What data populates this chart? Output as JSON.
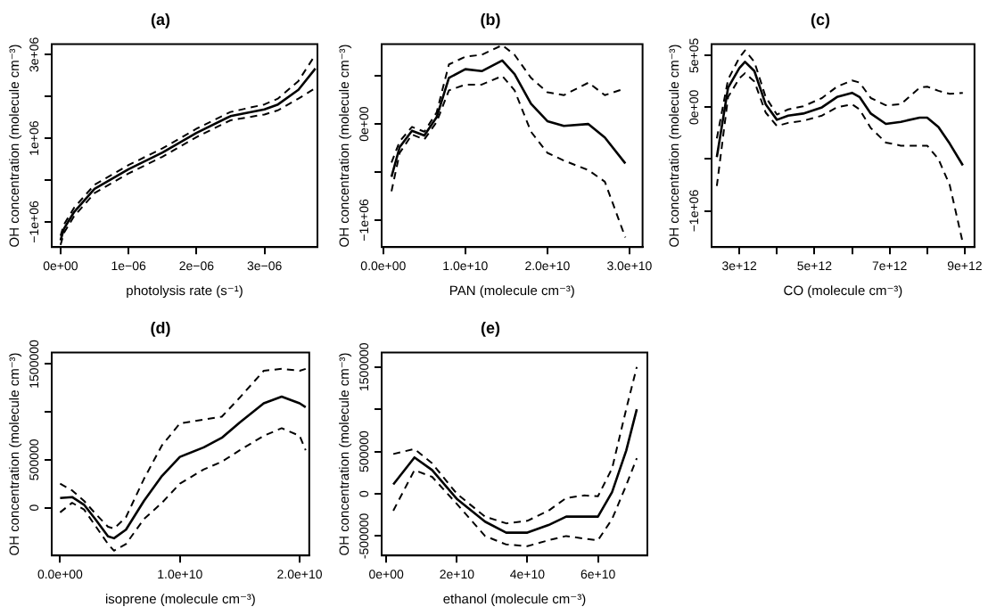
{
  "chart_data": [
    {
      "type": "line",
      "title": "(a)",
      "xlabel": "photolysis rate (s⁻¹)",
      "ylabel": "OH concentration (molecule cm⁻³)",
      "xlim": [
        -1.3e-07,
        3.78e-06
      ],
      "ylim": [
        -1600000.0,
        3250000.0
      ],
      "xticks": [
        {
          "value": 0,
          "label": "0e+00"
        },
        {
          "value": 1e-06,
          "label": "1e−06"
        },
        {
          "value": 2e-06,
          "label": "2e−06"
        },
        {
          "value": 3e-06,
          "label": "3e−06"
        }
      ],
      "yticks": [
        {
          "value": -1000000.0,
          "label": "−1e+06"
        },
        {
          "value": 0,
          "label": null
        },
        {
          "value": 1000000.0,
          "label": "1e+06"
        },
        {
          "value": 2000000.0,
          "label": null
        },
        {
          "value": 3000000.0,
          "label": "3e+06"
        }
      ],
      "grid": false,
      "legend": false,
      "marker": "none",
      "x": [
        0,
        5e-08,
        2e-07,
        5e-07,
        1e-06,
        1.5e-06,
        2e-06,
        2.5e-06,
        3e-06,
        3.2e-06,
        3.5e-06,
        3.75e-06
      ],
      "series": [
        {
          "color": "#000000",
          "line_style": "solid",
          "values": [
            -1440000.0,
            -1160000.0,
            -760000.0,
            -210000.0,
            260000.0,
            660000.0,
            1130000.0,
            1530000.0,
            1690000.0,
            1810000.0,
            2160000.0,
            2670000.0
          ]
        },
        {
          "color": "#000000",
          "line_style": "dashed",
          "values": [
            -1330000.0,
            -1060000.0,
            -660000.0,
            -110000.0,
            360000.0,
            760000.0,
            1230000.0,
            1630000.0,
            1810000.0,
            1950000.0,
            2370000.0,
            3000000.0
          ]
        },
        {
          "color": "#000000",
          "line_style": "dashed",
          "values": [
            -1550000.0,
            -1260000.0,
            -860000.0,
            -310000.0,
            160000.0,
            560000.0,
            1030000.0,
            1430000.0,
            1570000.0,
            1670000.0,
            1950000.0,
            2200000.0
          ]
        }
      ]
    },
    {
      "type": "line",
      "title": "(b)",
      "xlabel": "PAN (molecule cm⁻³)",
      "ylabel": "OH concentration (molecule cm⁻³)",
      "xlim": [
        -200000000.0,
        31600000000.0
      ],
      "ylim": [
        -1280000.0,
        830000.0
      ],
      "xticks": [
        {
          "value": 0,
          "label": "0.0e+00"
        },
        {
          "value": 10000000000.0,
          "label": "1.0e+10"
        },
        {
          "value": 20000000000.0,
          "label": "2.0e+10"
        },
        {
          "value": 30000000000.0,
          "label": "3.0e+10"
        }
      ],
      "yticks": [
        {
          "value": -1000000.0,
          "label": "−1e+06"
        },
        {
          "value": -500000.0,
          "label": null
        },
        {
          "value": 0,
          "label": "0e+00"
        },
        {
          "value": 500000.0,
          "label": null
        }
      ],
      "grid": false,
      "legend": false,
      "marker": "none",
      "x": [
        1000000000.0,
        2000000000.0,
        3500000000.0,
        5000000000.0,
        6500000000.0,
        8000000000.0,
        10000000000.0,
        12000000000.0,
        14500000000.0,
        16000000000.0,
        18000000000.0,
        20000000000.0,
        22000000000.0,
        25000000000.0,
        27000000000.0,
        29500000000.0
      ],
      "series": [
        {
          "color": "#000000",
          "line_style": "solid",
          "values": [
            -550000.0,
            -240000.0,
            -70000.0,
            -120000.0,
            70000.0,
            480000.0,
            570000.0,
            550000.0,
            660000.0,
            520000.0,
            210000.0,
            30000.0,
            -20000.0,
            0,
            -140000.0,
            -410000.0
          ]
        },
        {
          "color": "#000000",
          "line_style": "dashed",
          "values": [
            -400000.0,
            -180000.0,
            -30000.0,
            -80000.0,
            120000.0,
            620000.0,
            700000.0,
            720000.0,
            820000.0,
            720000.0,
            480000.0,
            330000.0,
            300000.0,
            430000.0,
            300000.0,
            370000.0
          ]
        },
        {
          "color": "#000000",
          "line_style": "dashed",
          "values": [
            -700000.0,
            -300000.0,
            -110000.0,
            -160000.0,
            20000.0,
            350000.0,
            410000.0,
            410000.0,
            500000.0,
            350000.0,
            -80000.0,
            -300000.0,
            -380000.0,
            -480000.0,
            -600000.0,
            -1180000.0
          ]
        }
      ]
    },
    {
      "type": "line",
      "title": "(c)",
      "xlabel": "CO (molecule cm⁻³)",
      "ylabel": "OH concentration (molecule cm⁻³)",
      "xlim": [
        2260000000000.0,
        9260000000000.0
      ],
      "ylim": [
        -1350000.0,
        610000.0
      ],
      "xticks": [
        {
          "value": 3000000000000.0,
          "label": "3e+12"
        },
        {
          "value": 4000000000000.0,
          "label": null
        },
        {
          "value": 5000000000000.0,
          "label": "5e+12"
        },
        {
          "value": 6000000000000.0,
          "label": null
        },
        {
          "value": 7000000000000.0,
          "label": "7e+12"
        },
        {
          "value": 8000000000000.0,
          "label": null
        },
        {
          "value": 9000000000000.0,
          "label": "9e+12"
        }
      ],
      "yticks": [
        {
          "value": -1000000.0,
          "label": "−1e+06"
        },
        {
          "value": -500000.0,
          "label": null
        },
        {
          "value": 0,
          "label": "0e+00"
        },
        {
          "value": 500000.0,
          "label": "5e+05"
        }
      ],
      "grid": false,
      "legend": false,
      "marker": "none",
      "x": [
        2400000000000.0,
        2700000000000.0,
        3000000000000.0,
        3150000000000.0,
        3400000000000.0,
        3700000000000.0,
        4000000000000.0,
        4300000000000.0,
        4700000000000.0,
        5200000000000.0,
        5600000000000.0,
        6000000000000.0,
        6200000000000.0,
        6500000000000.0,
        6900000000000.0,
        7300000000000.0,
        7800000000000.0,
        8000000000000.0,
        8300000000000.0,
        8600000000000.0,
        8950000000000.0
      ],
      "series": [
        {
          "color": "#000000",
          "line_style": "solid",
          "values": [
            -480000.0,
            190000.0,
            380000.0,
            440000.0,
            350000.0,
            30000.0,
            -120000.0,
            -80000.0,
            -60000.0,
            0,
            100000.0,
            140000.0,
            100000.0,
            -60000.0,
            -160000.0,
            -140000.0,
            -100000.0,
            -100000.0,
            -190000.0,
            -350000.0,
            -560000.0
          ]
        },
        {
          "color": "#000000",
          "line_style": "dashed",
          "values": [
            -300000.0,
            270000.0,
            480000.0,
            550000.0,
            440000.0,
            100000.0,
            -70000.0,
            -20000.0,
            10000.0,
            90000.0,
            200000.0,
            260000.0,
            240000.0,
            90000.0,
            20000.0,
            30000.0,
            190000.0,
            200000.0,
            160000.0,
            130000.0,
            140000.0
          ]
        },
        {
          "color": "#000000",
          "line_style": "dashed",
          "values": [
            -760000.0,
            100000.0,
            280000.0,
            330000.0,
            250000.0,
            -50000.0,
            -180000.0,
            -150000.0,
            -130000.0,
            -80000.0,
            0,
            30000.0,
            -20000.0,
            -200000.0,
            -340000.0,
            -370000.0,
            -370000.0,
            -370000.0,
            -500000.0,
            -750000.0,
            -1310000.0
          ]
        }
      ]
    },
    {
      "type": "line",
      "title": "(d)",
      "xlabel": "isoprene (molecule cm⁻³)",
      "ylabel": "OH concentration (molecule cm⁻³)",
      "xlim": [
        -700000000.0,
        20800000000.0
      ],
      "ylim": [
        -500000.0,
        1620000.0
      ],
      "xticks": [
        {
          "value": 0,
          "label": "0.0e+00"
        },
        {
          "value": 10000000000.0,
          "label": "1.0e+10"
        },
        {
          "value": 20000000000.0,
          "label": "2.0e+10"
        }
      ],
      "yticks": [
        0,
        500000,
        {
          "value": 1000000,
          "label": null
        },
        1500000
      ],
      "grid": false,
      "legend": false,
      "marker": "none",
      "x": [
        0,
        1000000000.0,
        2000000000.0,
        3000000000.0,
        4000000000.0,
        4500000000.0,
        5500000000.0,
        7000000000.0,
        8500000000.0,
        10000000000.0,
        12000000000.0,
        13500000000.0,
        15000000000.0,
        17000000000.0,
        18500000000.0,
        20000000000.0,
        20500000000.0
      ],
      "series": [
        {
          "color": "#000000",
          "line_style": "solid",
          "values": [
            100000.0,
            110000.0,
            30000.0,
            -130000.0,
            -300000.0,
            -320000.0,
            -230000.0,
            70000.0,
            330000.0,
            530000.0,
            630000.0,
            730000.0,
            890000.0,
            1090000.0,
            1160000.0,
            1090000.0,
            1050000.0
          ]
        },
        {
          "color": "#000000",
          "line_style": "dashed",
          "values": [
            250000.0,
            180000.0,
            70000.0,
            -70000.0,
            -200000.0,
            -220000.0,
            -100000.0,
            300000.0,
            650000.0,
            880000.0,
            920000.0,
            950000.0,
            1150000.0,
            1430000.0,
            1450000.0,
            1430000.0,
            1450000.0
          ]
        },
        {
          "color": "#000000",
          "line_style": "dashed",
          "values": [
            -50000.0,
            50000.0,
            -20000.0,
            -200000.0,
            -380000.0,
            -450000.0,
            -380000.0,
            -120000.0,
            50000.0,
            250000.0,
            400000.0,
            480000.0,
            600000.0,
            750000.0,
            830000.0,
            750000.0,
            600000.0
          ]
        }
      ]
    },
    {
      "type": "line",
      "title": "(e)",
      "xlabel": "ethanol (molecule cm⁻³)",
      "ylabel": "OH concentration (molecule cm⁻³)",
      "xlim": [
        -1300000000.0,
        74000000000.0
      ],
      "ylim": [
        -730000.0,
        1670000.0
      ],
      "xticks": [
        {
          "value": 0,
          "label": "0e+00"
        },
        {
          "value": 20000000000.0,
          "label": "2e+10"
        },
        {
          "value": 40000000000.0,
          "label": "4e+10"
        },
        {
          "value": 60000000000.0,
          "label": "6e+10"
        }
      ],
      "yticks": [
        -500000,
        0,
        500000,
        {
          "value": 1000000,
          "label": null
        },
        1500000
      ],
      "grid": false,
      "legend": false,
      "marker": "none",
      "x": [
        2000000000.0,
        8000000000.0,
        13000000000.0,
        20000000000.0,
        28000000000.0,
        34000000000.0,
        40000000000.0,
        46000000000.0,
        51000000000.0,
        56000000000.0,
        60000000000.0,
        64000000000.0,
        68000000000.0,
        71000000000.0
      ],
      "series": [
        {
          "color": "#000000",
          "line_style": "solid",
          "values": [
            110000.0,
            430000.0,
            280000.0,
            -60000.0,
            -330000.0,
            -460000.0,
            -460000.0,
            -370000.0,
            -270000.0,
            -270000.0,
            -270000.0,
            20000.0,
            510000.0,
            1000000.0
          ]
        },
        {
          "color": "#000000",
          "line_style": "dashed",
          "values": [
            470000.0,
            530000.0,
            360000.0,
            0,
            -270000.0,
            -350000.0,
            -320000.0,
            -200000.0,
            -50000.0,
            -20000.0,
            -30000.0,
            300000.0,
            1000000.0,
            1500000.0
          ]
        },
        {
          "color": "#000000",
          "line_style": "dashed",
          "values": [
            -200000.0,
            280000.0,
            200000.0,
            -120000.0,
            -500000.0,
            -600000.0,
            -620000.0,
            -550000.0,
            -500000.0,
            -530000.0,
            -550000.0,
            -300000.0,
            100000.0,
            420000.0
          ]
        }
      ]
    }
  ]
}
